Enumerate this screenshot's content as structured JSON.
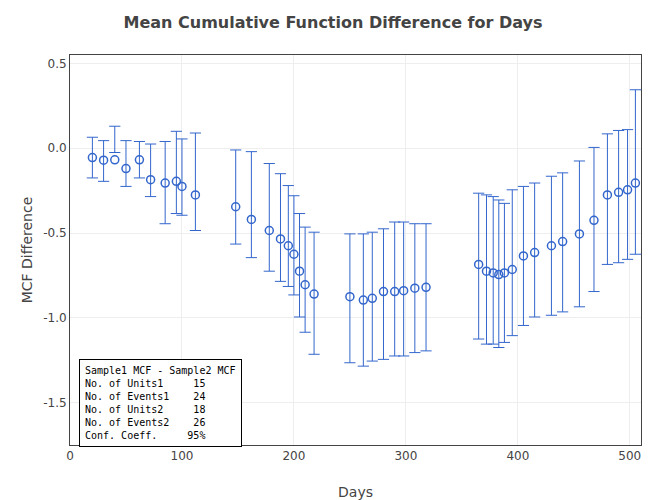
{
  "chart_data": {
    "type": "scatter",
    "title": "Mean Cumulative Function Difference for Days",
    "xlabel": "Days",
    "ylabel": "MCF Difference",
    "x": [
      20,
      30,
      40,
      50,
      62,
      72,
      85,
      95,
      100,
      112,
      148,
      162,
      178,
      188,
      195,
      200,
      205,
      210,
      218,
      250,
      262,
      270,
      280,
      290,
      298,
      308,
      318,
      365,
      372,
      378,
      383,
      388,
      395,
      405,
      415,
      430,
      440,
      455,
      468,
      480,
      490,
      498,
      505
    ],
    "values": [
      -0.055,
      -0.07,
      -0.068,
      -0.12,
      -0.068,
      -0.185,
      -0.205,
      -0.195,
      -0.225,
      -0.275,
      -0.345,
      -0.42,
      -0.485,
      -0.535,
      -0.575,
      -0.625,
      -0.725,
      -0.805,
      -0.86,
      -0.875,
      -0.895,
      -0.885,
      -0.845,
      -0.845,
      -0.84,
      -0.825,
      -0.82,
      -0.685,
      -0.725,
      -0.735,
      -0.745,
      -0.735,
      -0.715,
      -0.635,
      -0.615,
      -0.575,
      -0.55,
      -0.505,
      -0.425,
      -0.275,
      -0.26,
      -0.245,
      -0.205
    ],
    "lo": [
      -0.175,
      -0.195,
      -0.025,
      -0.225,
      -0.175,
      -0.285,
      -0.445,
      -0.385,
      -0.395,
      -0.485,
      -0.565,
      -0.645,
      -0.725,
      -0.785,
      -0.815,
      -0.865,
      -0.995,
      -1.085,
      -1.215,
      -1.265,
      -1.285,
      -1.255,
      -1.245,
      -1.225,
      -1.225,
      -1.205,
      -1.195,
      -1.125,
      -1.155,
      -1.155,
      -1.175,
      -1.145,
      -1.105,
      -1.045,
      -0.995,
      -0.985,
      -0.965,
      -0.935,
      -0.845,
      -0.685,
      -0.675,
      -0.655,
      -0.625
    ],
    "hi": [
      0.065,
      0.045,
      0.13,
      0.045,
      0.04,
      0.025,
      0.04,
      0.1,
      0.055,
      0.09,
      -0.01,
      -0.02,
      -0.09,
      -0.15,
      -0.22,
      -0.28,
      -0.385,
      -0.465,
      -0.495,
      -0.505,
      -0.505,
      -0.495,
      -0.475,
      -0.435,
      -0.435,
      -0.445,
      -0.445,
      -0.265,
      -0.275,
      -0.285,
      -0.305,
      -0.325,
      -0.245,
      -0.225,
      -0.205,
      -0.165,
      -0.145,
      -0.075,
      0.005,
      0.085,
      0.105,
      0.11,
      0.345
    ],
    "color": "#3366cc",
    "marker": "open circle",
    "xlim": [
      0,
      510
    ],
    "ylim": [
      -1.75,
      0.55
    ],
    "xticks": [
      0,
      100,
      200,
      300,
      400,
      500
    ],
    "yticks": [
      0.5,
      {
        "value": 0.0,
        "label": "0.0"
      },
      -0.5,
      {
        "value": -1.0,
        "label": "-1.0"
      },
      -1.5
    ],
    "grid": true,
    "annotation": {
      "heading": "Sample1 MCF - Sample2 MCF",
      "rows": [
        [
          "No. of Units1",
          "15"
        ],
        [
          "No. of Events1",
          "24"
        ],
        [
          "No. of Units2",
          "18"
        ],
        [
          "No. of Events2",
          "26"
        ],
        [
          "Conf. Coeff.",
          "95%"
        ]
      ]
    }
  }
}
